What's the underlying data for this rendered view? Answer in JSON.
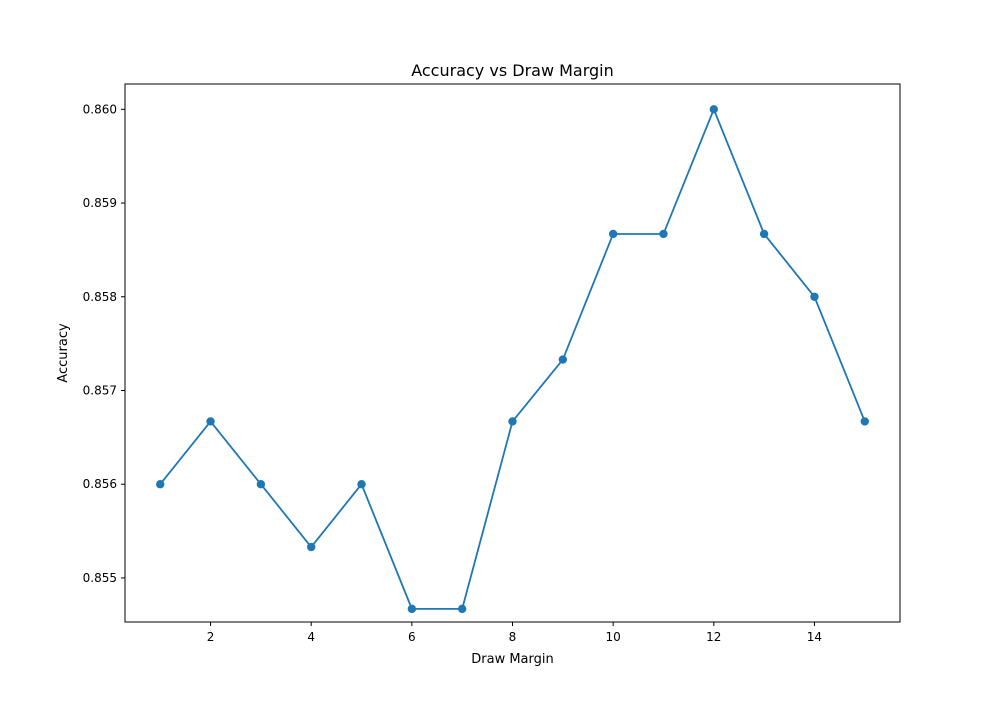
{
  "chart_data": {
    "type": "line",
    "title": "Accuracy vs Draw Margin",
    "xlabel": "Draw Margin",
    "ylabel": "Accuracy",
    "x": [
      1,
      2,
      3,
      4,
      5,
      6,
      7,
      8,
      9,
      10,
      11,
      12,
      13,
      14,
      15
    ],
    "series": [
      {
        "values": [
          0.856,
          0.85667,
          0.856,
          0.85533,
          0.856,
          0.85467,
          0.85467,
          0.85667,
          0.85733,
          0.85867,
          0.85867,
          0.86,
          0.85867,
          0.858,
          0.85667
        ],
        "color": "#1f77b4",
        "marker": "circle"
      }
    ],
    "xlim": [
      0.3,
      15.7
    ],
    "ylim": [
      0.85453,
      0.86027
    ],
    "xticks": [
      2,
      4,
      6,
      8,
      10,
      12,
      14
    ],
    "xtick_labels": [
      "2",
      "4",
      "6",
      "8",
      "10",
      "12",
      "14"
    ],
    "yticks": [
      0.855,
      0.856,
      0.857,
      0.858,
      0.859,
      0.86
    ],
    "ytick_labels": [
      "0.855",
      "0.856",
      "0.857",
      "0.858",
      "0.859",
      "0.860"
    ],
    "grid": false,
    "legend": "none"
  }
}
